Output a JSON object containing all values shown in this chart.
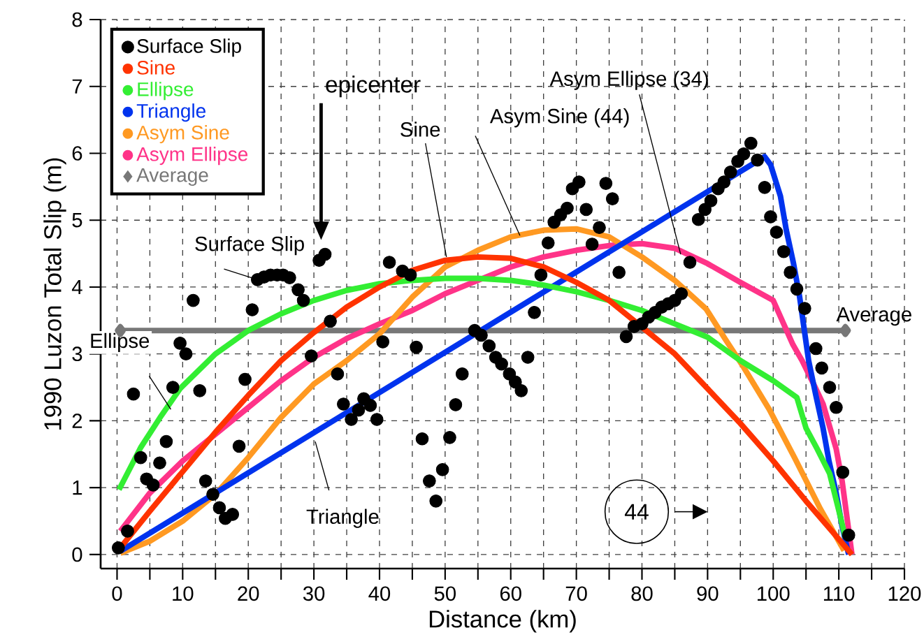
{
  "chart_data": {
    "type": "scatter",
    "xlabel": "Distance (km)",
    "ylabel": "1990 Luzon Total Slip (m)",
    "xlim": [
      -2.5,
      120
    ],
    "ylim": [
      -0.21,
      8
    ],
    "xticks": [
      0,
      {
        "value": 5,
        "label": null
      },
      10,
      {
        "value": 15,
        "label": null
      },
      20,
      {
        "value": 25,
        "label": null
      },
      30,
      {
        "value": 35,
        "label": null
      },
      40,
      {
        "value": 45,
        "label": null
      },
      50,
      {
        "value": 55,
        "label": null
      },
      60,
      {
        "value": 65,
        "label": null
      },
      70,
      {
        "value": 75,
        "label": null
      },
      80,
      {
        "value": 85,
        "label": null
      },
      90,
      {
        "value": 95,
        "label": null
      },
      100,
      {
        "value": 105,
        "label": null
      },
      110,
      {
        "value": 115,
        "label": null
      },
      120
    ],
    "yticks": [
      0,
      1,
      2,
      3,
      4,
      5,
      6,
      7,
      8
    ],
    "grid": true,
    "legend": "top left",
    "series": [
      {
        "name": "Surface Slip",
        "marker": "circle",
        "color": "#000000",
        "x": [
          0.2,
          1.6,
          2.5,
          3.6,
          4.5,
          5.5,
          6.5,
          7.5,
          8.5,
          9.6,
          10.5,
          11.6,
          12.6,
          13.5,
          14.6,
          15.6,
          16.5,
          17.6,
          18.6,
          19.5,
          20.6,
          21.4,
          22.4,
          23.4,
          24.4,
          25.3,
          26.3,
          27.6,
          28.4,
          29.6,
          30.8,
          31.7,
          32.5,
          33.6,
          34.5,
          35.7,
          36.8,
          37.6,
          38.6,
          39.6,
          40.5,
          41.5,
          43.5,
          44.7,
          45.6,
          46.5,
          47.6,
          48.6,
          49.6,
          50.7,
          51.6,
          52.6,
          54.5,
          55.5,
          56.7,
          57.7,
          58.6,
          59.8,
          60.7,
          61.6,
          62.6,
          63.6,
          64.6,
          65.7,
          66.6,
          67.6,
          68.6,
          69.4,
          70.4,
          71.5,
          72.4,
          73.5,
          74.5,
          75.5,
          76.5,
          77.6,
          78.8,
          80,
          81,
          82,
          83,
          84,
          85,
          86,
          87.3,
          88.6,
          89.6,
          90.5,
          91.6,
          92.5,
          93.5,
          94.6,
          95.5,
          96.6,
          97.6,
          98.7,
          99.6,
          100.5,
          101.6,
          102.6,
          103.6,
          104.8,
          106.5,
          107.4,
          108.6,
          109.6,
          110.6,
          111.5
        ],
        "values": [
          0.1,
          0.35,
          2.4,
          1.45,
          1.13,
          1.04,
          1.37,
          1.69,
          2.5,
          3.16,
          3.0,
          3.8,
          2.45,
          1.1,
          0.9,
          0.7,
          0.54,
          0.6,
          1.62,
          2.62,
          3.66,
          4.11,
          4.15,
          4.18,
          4.18,
          4.18,
          4.14,
          3.96,
          3.8,
          2.97,
          4.4,
          4.49,
          3.49,
          2.7,
          2.25,
          2.02,
          2.16,
          2.33,
          2.23,
          2.02,
          3.18,
          4.37,
          4.24,
          4.18,
          3.1,
          1.73,
          1.1,
          0.8,
          1.27,
          1.75,
          2.24,
          2.7,
          3.35,
          3.28,
          3.12,
          2.95,
          2.85,
          2.7,
          2.58,
          2.45,
          2.95,
          3.62,
          4.18,
          4.66,
          4.97,
          5.08,
          5.18,
          5.47,
          5.57,
          5.16,
          4.64,
          4.89,
          5.55,
          5.32,
          4.22,
          3.26,
          3.41,
          3.45,
          3.55,
          3.62,
          3.7,
          3.75,
          3.8,
          3.9,
          4.37,
          5.01,
          5.16,
          5.29,
          5.47,
          5.57,
          5.72,
          5.88,
          5.99,
          6.15,
          5.9,
          5.49,
          5.05,
          4.82,
          4.53,
          4.22,
          3.97,
          3.68,
          3.08,
          2.79,
          2.5,
          2.2,
          1.23,
          0.29
        ]
      },
      {
        "name": "Sine",
        "type": "line",
        "color": "#ff3300",
        "x": [
          0.5,
          5,
          10,
          15,
          20,
          25,
          30,
          35,
          40,
          45,
          50,
          55,
          60,
          65,
          70,
          75,
          80,
          85,
          90,
          95,
          100,
          105,
          110,
          112
        ],
        "values": [
          0.1,
          0.65,
          1.24,
          1.83,
          2.38,
          2.9,
          3.32,
          3.7,
          4.0,
          4.25,
          4.4,
          4.45,
          4.43,
          4.3,
          4.07,
          3.8,
          3.4,
          3.0,
          2.48,
          1.96,
          1.4,
          0.8,
          0.23,
          0
        ]
      },
      {
        "name": "Ellipse",
        "type": "line",
        "color": "#33ee33",
        "x": [
          0.3,
          3.6,
          6.5,
          9.6,
          15,
          20,
          25,
          30,
          35,
          40,
          45,
          50,
          55,
          60,
          65,
          70,
          75,
          80,
          85,
          90,
          95,
          100,
          103.6,
          105,
          106.7,
          108.6,
          110.3,
          111
        ],
        "values": [
          0.97,
          1.6,
          2.04,
          2.48,
          3.0,
          3.35,
          3.6,
          3.8,
          3.95,
          4.05,
          4.1,
          4.13,
          4.13,
          4.1,
          4.03,
          3.93,
          3.8,
          3.65,
          3.45,
          3.25,
          2.9,
          2.6,
          2.35,
          1.89,
          1.58,
          1.21,
          0.54,
          0.25
        ]
      },
      {
        "name": "Triangle",
        "type": "line",
        "color": "#0033ee",
        "x": [
          0.5,
          98.7,
          99.6,
          101.1,
          102,
          103.1,
          104,
          105.4,
          106.5,
          107.6,
          108.5,
          109.6,
          110.5,
          111.5
        ],
        "values": [
          0.05,
          5.95,
          5.83,
          5.36,
          4.85,
          4.35,
          3.87,
          2.9,
          2.38,
          1.89,
          1.4,
          0.92,
          0.42,
          0
        ]
      },
      {
        "name": "Asym Sine",
        "type": "line",
        "color": "#ff9922",
        "x": [
          0.5,
          5,
          10,
          15,
          20,
          25,
          30,
          35,
          40,
          45,
          50,
          55,
          60,
          65,
          70,
          75,
          80,
          85,
          89.8,
          92.7,
          95.5,
          99.4,
          103.3,
          107.2,
          110.8
        ],
        "values": [
          0.02,
          0.2,
          0.5,
          0.9,
          1.45,
          2.05,
          2.55,
          2.9,
          3.3,
          3.85,
          4.3,
          4.55,
          4.75,
          4.85,
          4.87,
          4.75,
          4.45,
          4.1,
          3.67,
          3.22,
          2.8,
          2.17,
          1.44,
          0.68,
          0.06
        ]
      },
      {
        "name": "Asym Ellipse",
        "type": "line",
        "color": "#ff3388",
        "x": [
          0.5,
          5,
          10,
          15,
          20,
          25,
          30,
          35,
          40,
          45,
          50,
          55,
          60,
          65,
          70,
          75,
          80,
          85,
          90,
          95,
          100,
          103,
          104.4,
          106.4,
          107.6,
          109.6,
          110.5,
          112
        ],
        "values": [
          0.35,
          0.92,
          1.4,
          1.8,
          2.2,
          2.6,
          2.95,
          3.23,
          3.45,
          3.65,
          3.9,
          4.1,
          4.3,
          4.45,
          4.55,
          4.62,
          4.65,
          4.58,
          4.35,
          4.07,
          3.8,
          3.14,
          2.9,
          2.5,
          2.25,
          1.58,
          1.1,
          0
        ]
      },
      {
        "name": "Average",
        "type": "line",
        "marker": "diamond",
        "color": "#777777",
        "x": [
          0.5,
          111
        ],
        "values": [
          3.35,
          3.35
        ]
      }
    ],
    "annotations": [
      "epicenter",
      {
        "text": "Surface Slip",
        "x": 21.4,
        "y": 4.11
      },
      {
        "text": "Sine",
        "x": 50.2,
        "y": 4.45
      },
      {
        "text": "Asym Sine (44)",
        "x": 61.4,
        "y": 4.77
      },
      {
        "text": "Asym Ellipse (34)",
        "x": 85.9,
        "y": 4.49
      },
      {
        "text": "Ellipse",
        "x": 8.2,
        "y": 2.17
      },
      {
        "text": "Triangle",
        "x": 30.2,
        "y": 1.69
      },
      {
        "text": "Average",
        "x": 110,
        "y": 3.35
      },
      "44"
    ]
  }
}
